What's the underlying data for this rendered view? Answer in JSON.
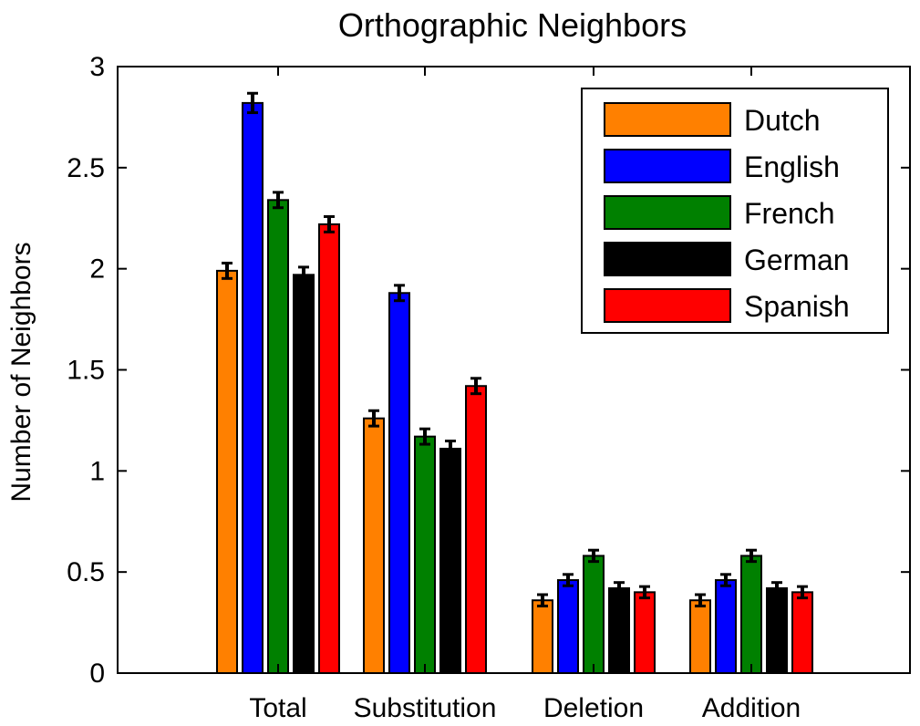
{
  "chart_data": {
    "type": "bar",
    "title": "Orthographic Neighbors",
    "xlabel": "",
    "ylabel": "Number of Neighbors",
    "ylim": [
      0,
      3
    ],
    "yticks": [
      0,
      0.5,
      1,
      1.5,
      2,
      2.5,
      3
    ],
    "ytick_labels": [
      "0",
      "0.5",
      "1",
      "1.5",
      "2",
      "2.5",
      "3"
    ],
    "categories": [
      "Total",
      "Substitution",
      "Deletion",
      "Addition"
    ],
    "series": [
      {
        "name": "Dutch",
        "color": "#FF8000",
        "values": [
          1.99,
          1.26,
          0.36,
          0.36
        ],
        "errors": [
          0.02,
          0.02,
          0.01,
          0.01
        ]
      },
      {
        "name": "English",
        "color": "#0000FF",
        "values": [
          2.82,
          1.88,
          0.46,
          0.46
        ],
        "errors": [
          0.03,
          0.02,
          0.01,
          0.01
        ]
      },
      {
        "name": "French",
        "color": "#008000",
        "values": [
          2.34,
          1.17,
          0.58,
          0.58
        ],
        "errors": [
          0.02,
          0.02,
          0.01,
          0.01
        ]
      },
      {
        "name": "German",
        "color": "#000000",
        "values": [
          1.97,
          1.11,
          0.42,
          0.42
        ],
        "errors": [
          0.02,
          0.02,
          0.01,
          0.01
        ]
      },
      {
        "name": "Spanish",
        "color": "#FF0000",
        "values": [
          2.22,
          1.42,
          0.4,
          0.4
        ],
        "errors": [
          0.02,
          0.02,
          0.01,
          0.01
        ]
      }
    ],
    "grid": false,
    "legend": "top-right",
    "error_bars": true
  }
}
